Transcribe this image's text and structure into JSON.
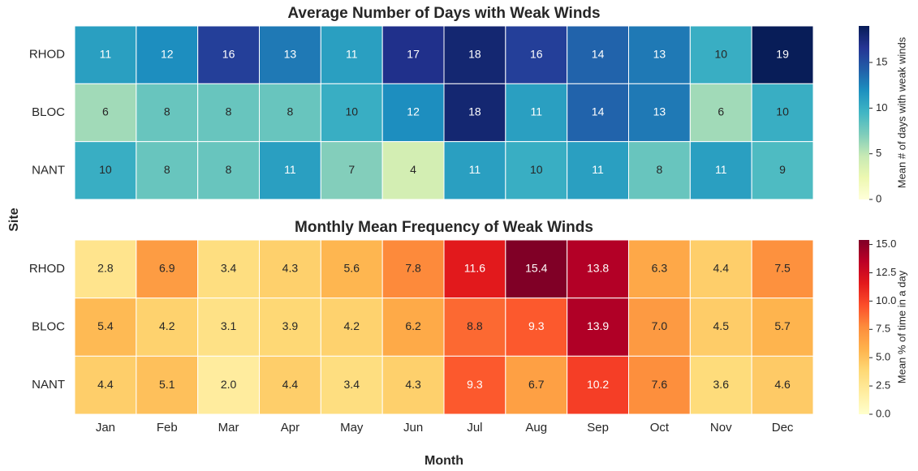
{
  "chart_data": [
    {
      "type": "heatmap",
      "title": "Average Number of Days with Weak Winds",
      "rows": [
        "RHOD",
        "BLOC",
        "NANT"
      ],
      "values": [
        [
          11,
          12,
          16,
          13,
          11,
          17,
          18,
          16,
          14,
          13,
          10,
          19
        ],
        [
          6,
          8,
          8,
          8,
          10,
          12,
          18,
          11,
          14,
          13,
          6,
          10
        ],
        [
          10,
          8,
          8,
          11,
          7,
          4,
          11,
          10,
          11,
          8,
          11,
          9
        ]
      ],
      "colormap": "YlGnBu",
      "clim": [
        0,
        19
      ],
      "cticks": [
        0,
        5,
        10,
        15
      ],
      "colorbar_label": "Mean # of days with weak winds",
      "ylabel": "Site"
    },
    {
      "type": "heatmap",
      "title": "Monthly Mean Frequency of Weak Winds",
      "rows": [
        "RHOD",
        "BLOC",
        "NANT"
      ],
      "categories": [
        "Jan",
        "Feb",
        "Mar",
        "Apr",
        "May",
        "Jun",
        "Jul",
        "Aug",
        "Sep",
        "Oct",
        "Nov",
        "Dec"
      ],
      "values": [
        [
          2.8,
          6.9,
          3.4,
          4.3,
          5.6,
          7.8,
          11.6,
          15.4,
          13.8,
          6.3,
          4.4,
          7.5
        ],
        [
          5.4,
          4.2,
          3.1,
          3.9,
          4.2,
          6.2,
          8.8,
          9.3,
          13.9,
          7.0,
          4.5,
          5.7
        ],
        [
          4.4,
          5.1,
          2.0,
          4.4,
          3.4,
          4.3,
          9.3,
          6.7,
          10.2,
          7.6,
          3.6,
          4.6
        ]
      ],
      "value_labels": [
        [
          "2.8",
          "6.9",
          "3.4",
          "4.3",
          "5.6",
          "7.8",
          "11.6",
          "15.4",
          "13.8",
          "6.3",
          "4.4",
          "7.5"
        ],
        [
          "5.4",
          "4.2",
          "3.1",
          "3.9",
          "4.2",
          "6.2",
          "8.8",
          "9.3",
          "13.9",
          "7.0",
          "4.5",
          "5.7"
        ],
        [
          "4.4",
          "5.1",
          "2.0",
          "4.4",
          "3.4",
          "4.3",
          "9.3",
          "6.7",
          "10.2",
          "7.6",
          "3.6",
          "4.6"
        ]
      ],
      "colormap": "YlOrRd",
      "clim": [
        0,
        15.4
      ],
      "cticks": [
        {
          "value": 0,
          "label": "0.0"
        },
        2.5,
        {
          "value": 5,
          "label": "5.0"
        },
        7.5,
        {
          "value": 10,
          "label": "10.0"
        },
        12.5,
        {
          "value": 15,
          "label": "15.0"
        }
      ],
      "colorbar_label": "Mean % of time in a day",
      "xlabel": "Month"
    }
  ]
}
